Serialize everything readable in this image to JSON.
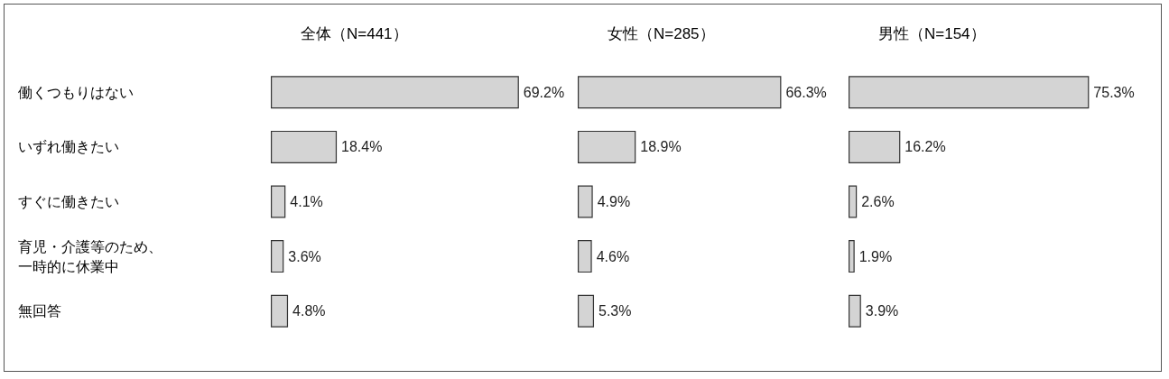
{
  "chart_data": [
    {
      "type": "bar",
      "orientation": "horizontal",
      "title": "全体（N=441）",
      "categories": [
        "働くつもりはない",
        "いずれ働きたい",
        "すぐに働きたい",
        "育児・介護等のため、一時的に休業中",
        "無回答"
      ],
      "values": [
        69.2,
        18.4,
        4.1,
        3.6,
        4.8
      ],
      "value_labels": [
        "69.2%",
        "18.4%",
        "4.1%",
        "3.6%",
        "4.8%"
      ],
      "color": "#d4d4d4",
      "tick_labels": "y",
      "grid": false
    },
    {
      "type": "bar",
      "orientation": "horizontal",
      "title": "女性（N=285）",
      "categories": [
        "働くつもりはない",
        "いずれ働きたい",
        "すぐに働きたい",
        "育児・介護等のため、一時的に休業中",
        "無回答"
      ],
      "values": [
        66.3,
        18.9,
        4.9,
        4.6,
        5.3
      ],
      "value_labels": [
        "66.3%",
        "18.9%",
        "4.9%",
        "4.6%",
        "5.3%"
      ],
      "color": "#d4d4d4",
      "tick_labels": false,
      "grid": false
    },
    {
      "type": "bar",
      "orientation": "horizontal",
      "title": "男性（N=154）",
      "categories": [
        "働くつもりはない",
        "いずれ働きたい",
        "すぐに働きたい",
        "育児・介護等のため、一時的に休業中",
        "無回答"
      ],
      "values": [
        75.3,
        16.2,
        2.6,
        1.9,
        3.9
      ],
      "value_labels": [
        "75.3%",
        "16.2%",
        "2.6%",
        "1.9%",
        "3.9%"
      ],
      "color": "#d4d4d4",
      "tick_labels": false,
      "grid": false
    }
  ]
}
